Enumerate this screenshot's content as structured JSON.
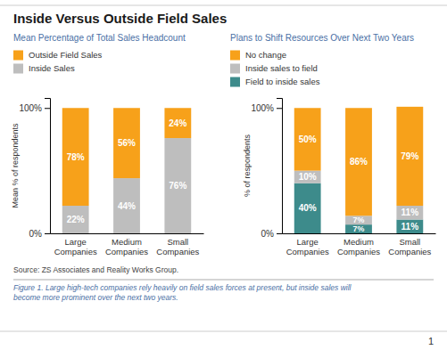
{
  "chart_data": [
    {
      "type": "bar",
      "stacked": true,
      "data_labels": true,
      "title": "Inside Versus Outside Field Sales",
      "subtitle": "Mean Percentage of Total Sales Headcount",
      "ylabel": "Mean % of respondents",
      "categories": [
        "Large\nCompanies",
        "Medium\nCompanies",
        "Small\nCompanies"
      ],
      "series": [
        {
          "name": "Inside Sales",
          "color": "#BEBEBE",
          "values": [
            22,
            44,
            76
          ],
          "value_labels": [
            "22%",
            "44%",
            "76%"
          ]
        },
        {
          "name": "Outside Field Sales",
          "color": "#F7A11A",
          "values": [
            78,
            56,
            24
          ],
          "value_labels": [
            "78%",
            "56%",
            "24%"
          ]
        }
      ],
      "ylim": [
        0,
        108
      ],
      "yticks": [
        {
          "value": 0,
          "label": "0%"
        },
        {
          "value": 100,
          "label": "100%"
        }
      ],
      "annotations": [
        "Source: ZS Associates and Reality Works Group.",
        "Figure 1. Large high-tech companies rely heavily on field sales forces at present, but inside sales will\nbecome more prominent over the next two years.",
        "1"
      ]
    },
    {
      "type": "bar",
      "stacked": true,
      "data_labels": true,
      "subtitle": "Plans to Shift Resources Over Next Two Years",
      "ylabel": "% of respondents",
      "categories": [
        "Large\nCompanies",
        "Medium\nCompanies",
        "Small\nCompanies"
      ],
      "series": [
        {
          "name": "Field to inside sales",
          "color": "#3D8B8B",
          "values": [
            40,
            7,
            11
          ],
          "value_labels": [
            "40%",
            "7%",
            "11%"
          ]
        },
        {
          "name": "Inside sales to field",
          "color": "#BEBEBE",
          "values": [
            10,
            7,
            11
          ],
          "value_labels": [
            "10%",
            "7%",
            "11%"
          ]
        },
        {
          "name": "No change",
          "color": "#F7A11A",
          "values": [
            50,
            86,
            79
          ],
          "value_labels": [
            "50%",
            "86%",
            "79%"
          ]
        }
      ],
      "ylim": [
        0,
        108
      ],
      "yticks": [
        {
          "value": 0,
          "label": "0%"
        },
        {
          "value": 100,
          "label": "100%"
        }
      ]
    }
  ]
}
